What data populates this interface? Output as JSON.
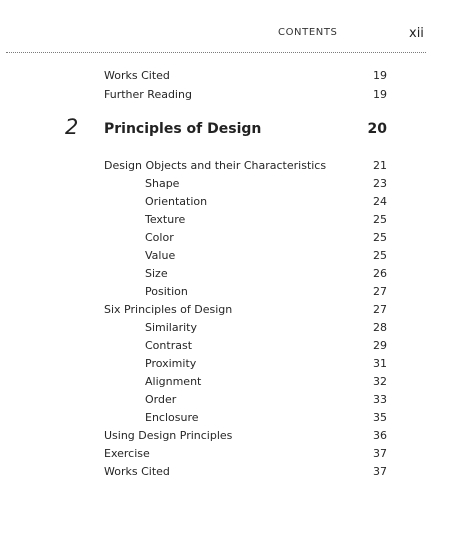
{
  "header": {
    "section_label": "CONTENTS",
    "page_number": "xii"
  },
  "before_chapter": [
    {
      "title": "Works Cited",
      "page": "19"
    },
    {
      "title": "Further Reading",
      "page": "19"
    }
  ],
  "chapter": {
    "number": "2",
    "title": "Principles of Design",
    "page": "20"
  },
  "entries": [
    {
      "title": "Design Objects and their Characteristics",
      "page": "21",
      "level": 1
    },
    {
      "title": "Shape",
      "page": "23",
      "level": 2
    },
    {
      "title": "Orientation",
      "page": "24",
      "level": 2
    },
    {
      "title": "Texture",
      "page": "25",
      "level": 2
    },
    {
      "title": "Color",
      "page": "25",
      "level": 2
    },
    {
      "title": "Value",
      "page": "25",
      "level": 2
    },
    {
      "title": "Size",
      "page": "26",
      "level": 2
    },
    {
      "title": "Position",
      "page": "27",
      "level": 2
    },
    {
      "title": "Six Principles of Design",
      "page": "27",
      "level": 1
    },
    {
      "title": "Similarity",
      "page": "28",
      "level": 2
    },
    {
      "title": "Contrast",
      "page": "29",
      "level": 2
    },
    {
      "title": "Proximity",
      "page": "31",
      "level": 2
    },
    {
      "title": "Alignment",
      "page": "32",
      "level": 2
    },
    {
      "title": "Order",
      "page": "33",
      "level": 2
    },
    {
      "title": "Enclosure",
      "page": "35",
      "level": 2
    },
    {
      "title": "Using Design Principles",
      "page": "36",
      "level": 1
    },
    {
      "title": "Exercise",
      "page": "37",
      "level": 1
    },
    {
      "title": "Works Cited",
      "page": "37",
      "level": 1
    }
  ]
}
